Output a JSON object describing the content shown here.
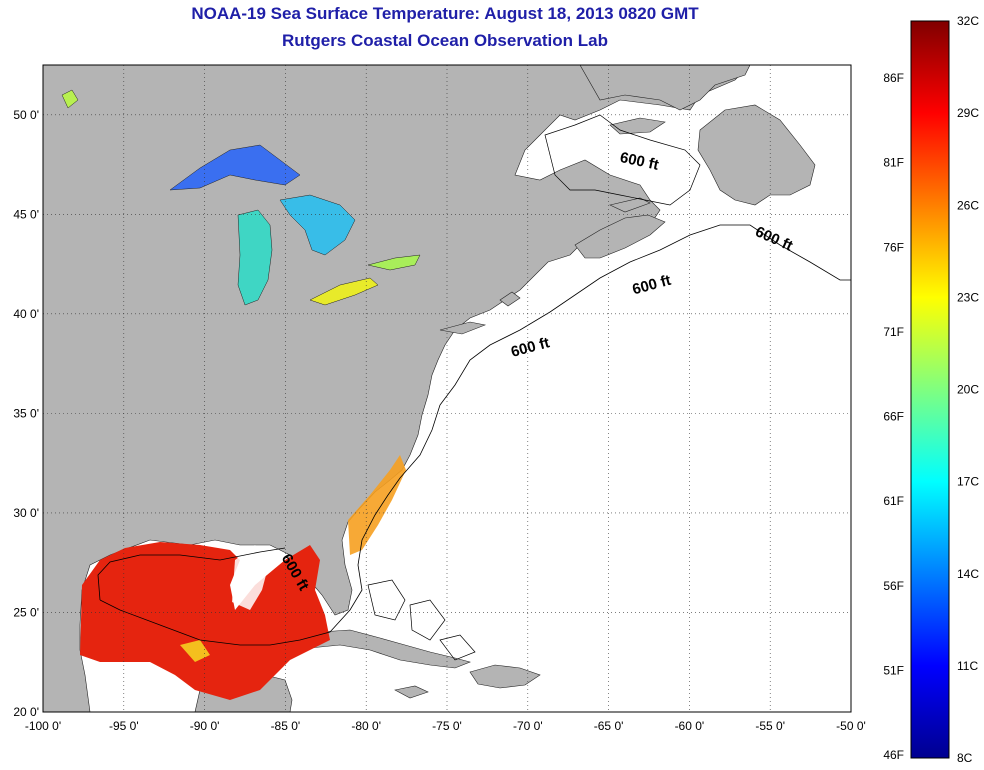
{
  "title": {
    "line1": "NOAA-19 Sea Surface Temperature:  August 18, 2013 0820 GMT",
    "line2": "Rutgers Coastal Ocean Observation Lab"
  },
  "map": {
    "lon_range": [
      -100,
      -50
    ],
    "lat_range": [
      20,
      52.5
    ],
    "lon_ticks": [
      "-100 0'",
      "-95 0'",
      "-90 0'",
      "-85 0'",
      "-80 0'",
      "-75 0'",
      "-70 0'",
      "-65 0'",
      "-60 0'",
      "-55 0'",
      "-50 0'"
    ],
    "lat_ticks": [
      "20 0'",
      "25 0'",
      "30 0'",
      "35 0'",
      "40 0'",
      "45 0'",
      "50 0'"
    ],
    "grid": "dotted",
    "land_color": "#b4b4b4",
    "ocean_nodata_color": "#ffffff",
    "contour_labels": [
      "600 ft",
      "600 ft",
      "600 ft",
      "600 ft",
      "600 ft"
    ]
  },
  "colorbar": {
    "celsius_ticks": [
      "32C",
      "29C",
      "26C",
      "23C",
      "20C",
      "17C",
      "14C",
      "11C",
      "8C"
    ],
    "fahrenheit_ticks": [
      "86F",
      "81F",
      "76F",
      "71F",
      "66F",
      "61F",
      "56F",
      "51F",
      "46F"
    ],
    "range_c": [
      8,
      32
    ],
    "colormap": "jet"
  }
}
